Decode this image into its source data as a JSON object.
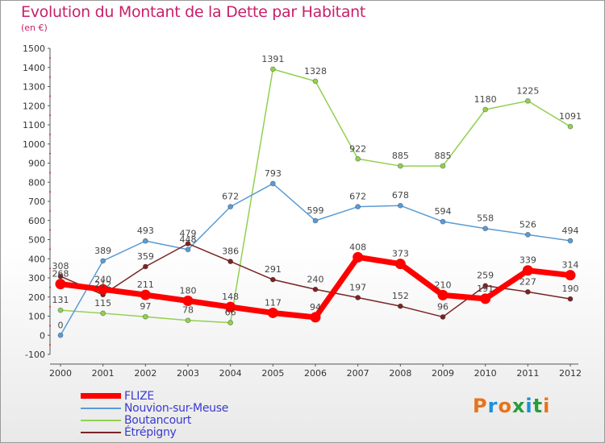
{
  "title": "Evolution du Montant de la Dette par Habitant",
  "subtitle": "(en €)",
  "logo": {
    "text": "Proxiti",
    "colors": [
      "#e8731a",
      "#1e90d8",
      "#e8731a",
      "#2b9c3a",
      "#1e90d8",
      "#2b9c3a",
      "#e8731a"
    ]
  },
  "chart_data": {
    "type": "line",
    "title": "Evolution du Montant de la Dette par Habitant",
    "subtitle": "(en €)",
    "x": [
      "2000",
      "2001",
      "2002",
      "2003",
      "2004",
      "2005",
      "2006",
      "2007",
      "2008",
      "2009",
      "2010",
      "2011",
      "2012"
    ],
    "ylim": [
      -100,
      1500
    ],
    "yticks": [
      -100,
      0,
      100,
      200,
      300,
      400,
      500,
      600,
      700,
      800,
      900,
      1000,
      1100,
      1200,
      1300,
      1400,
      1500
    ],
    "grid": false,
    "legend_position": "bottom-left",
    "series": [
      {
        "name": "FLIZE",
        "color": "#ff0000",
        "values": [
          268,
          240,
          211,
          180,
          148,
          117,
          94,
          408,
          373,
          210,
          191,
          339,
          314
        ],
        "labels": [
          "268",
          "240",
          "211",
          "180",
          "148",
          "117",
          "94",
          "408",
          "373",
          "210",
          "191",
          "339",
          "314"
        ]
      },
      {
        "name": "Nouvion-sur-Meuse",
        "color": "#5b9bd5",
        "values": [
          0,
          389,
          493,
          448,
          672,
          793,
          599,
          672,
          678,
          594,
          558,
          526,
          494
        ],
        "labels": [
          "0",
          "389",
          "493",
          "448",
          "672",
          "793",
          "599",
          "672",
          "678",
          "594",
          "558",
          "526",
          "494"
        ]
      },
      {
        "name": "Boutancourt",
        "color": "#92d050",
        "values": [
          131,
          115,
          97,
          78,
          66,
          1391,
          1328,
          922,
          885,
          885,
          1180,
          1225,
          1091
        ],
        "labels": [
          "131",
          "115",
          "97",
          "78",
          "66",
          "1391",
          "1328",
          "922",
          "885",
          "885",
          "1180",
          "1225",
          "1091"
        ]
      },
      {
        "name": "Étrépigny",
        "color": "#7b2424",
        "values": [
          308,
          212,
          359,
          479,
          386,
          291,
          240,
          197,
          152,
          96,
          259,
          227,
          190
        ],
        "labels": [
          "308",
          "212",
          "359",
          "479",
          "386",
          "291",
          "240",
          "197",
          "152",
          "96",
          "259",
          "227",
          "190"
        ]
      }
    ]
  }
}
